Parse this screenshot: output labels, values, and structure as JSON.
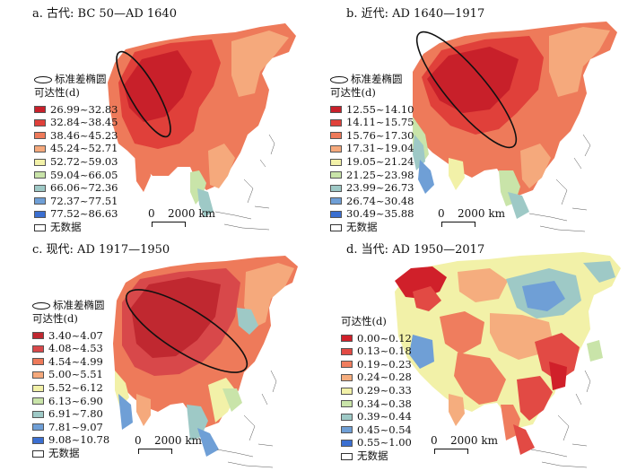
{
  "panels": [
    {
      "title": "a. 古代: BC 50—AD 1640",
      "ellipse_label": "标准差椭圆",
      "legend_title": "可达性(d)",
      "legend_items": [
        {
          "label": "26.99~32.83",
          "color": "#c8202a"
        },
        {
          "label": "32.84~38.45",
          "color": "#e0403a"
        },
        {
          "label": "38.46~45.23",
          "color": "#ee7a5a"
        },
        {
          "label": "45.24~52.71",
          "color": "#f5a97c"
        },
        {
          "label": "52.72~59.03",
          "color": "#f2f1a8"
        },
        {
          "label": "59.04~66.05",
          "color": "#c9e4a9"
        },
        {
          "label": "66.06~72.36",
          "color": "#9ec9c6"
        },
        {
          "label": "72.37~77.51",
          "color": "#6f9fd6"
        },
        {
          "label": "77.52~86.63",
          "color": "#3b6fd1"
        }
      ],
      "nodata_label": "无数据",
      "scale_zero": "0",
      "scale_text": "2000 km"
    },
    {
      "title": "b. 近代: AD 1640—1917",
      "ellipse_label": "标准差椭圆",
      "legend_title": "可达性(d)",
      "legend_items": [
        {
          "label": "12.55~14.10",
          "color": "#c8202a"
        },
        {
          "label": "14.11~15.75",
          "color": "#e0403a"
        },
        {
          "label": "15.76~17.30",
          "color": "#ee7a5a"
        },
        {
          "label": "17.31~19.04",
          "color": "#f5a97c"
        },
        {
          "label": "19.05~21.24",
          "color": "#f2f1a8"
        },
        {
          "label": "21.25~23.98",
          "color": "#c9e4a9"
        },
        {
          "label": "23.99~26.73",
          "color": "#9ec9c6"
        },
        {
          "label": "26.74~30.48",
          "color": "#6f9fd6"
        },
        {
          "label": "30.49~35.88",
          "color": "#3b6fd1"
        }
      ],
      "nodata_label": "无数据",
      "scale_zero": "0",
      "scale_text": "2000 km"
    },
    {
      "title": "c. 现代: AD 1917—1950",
      "ellipse_label": "标准差椭圆",
      "legend_title": "可达性(d)",
      "legend_items": [
        {
          "label": "3.40~4.07",
          "color": "#c02830"
        },
        {
          "label": "4.08~4.53",
          "color": "#d8484a"
        },
        {
          "label": "4.54~4.99",
          "color": "#ee7a5a"
        },
        {
          "label": "5.00~5.51",
          "color": "#f5a97c"
        },
        {
          "label": "5.52~6.12",
          "color": "#f2f1a8"
        },
        {
          "label": "6.13~6.90",
          "color": "#c9e4a9"
        },
        {
          "label": "6.91~7.80",
          "color": "#9ec9c6"
        },
        {
          "label": "7.81~9.07",
          "color": "#6f9fd6"
        },
        {
          "label": "9.08~10.78",
          "color": "#3b6fd1"
        }
      ],
      "nodata_label": "无数据",
      "scale_zero": "0",
      "scale_text": "2000 km"
    },
    {
      "title": "d. 当代: AD 1950—2017",
      "ellipse_label": "",
      "legend_title": "可达性(d)",
      "legend_items": [
        {
          "label": "0.00~0.12",
          "color": "#d0202a"
        },
        {
          "label": "0.13~0.18",
          "color": "#e24a44"
        },
        {
          "label": "0.19~0.23",
          "color": "#ef7d5e"
        },
        {
          "label": "0.24~0.28",
          "color": "#f5ad7e"
        },
        {
          "label": "0.29~0.33",
          "color": "#f2f1a8"
        },
        {
          "label": "0.34~0.38",
          "color": "#c9e4a9"
        },
        {
          "label": "0.39~0.44",
          "color": "#9ec9c6"
        },
        {
          "label": "0.45~0.54",
          "color": "#6f9fd6"
        },
        {
          "label": "0.55~1.00",
          "color": "#3b6fd1"
        }
      ],
      "nodata_label": "无数据",
      "scale_zero": "0",
      "scale_text": "2000 km"
    }
  ]
}
